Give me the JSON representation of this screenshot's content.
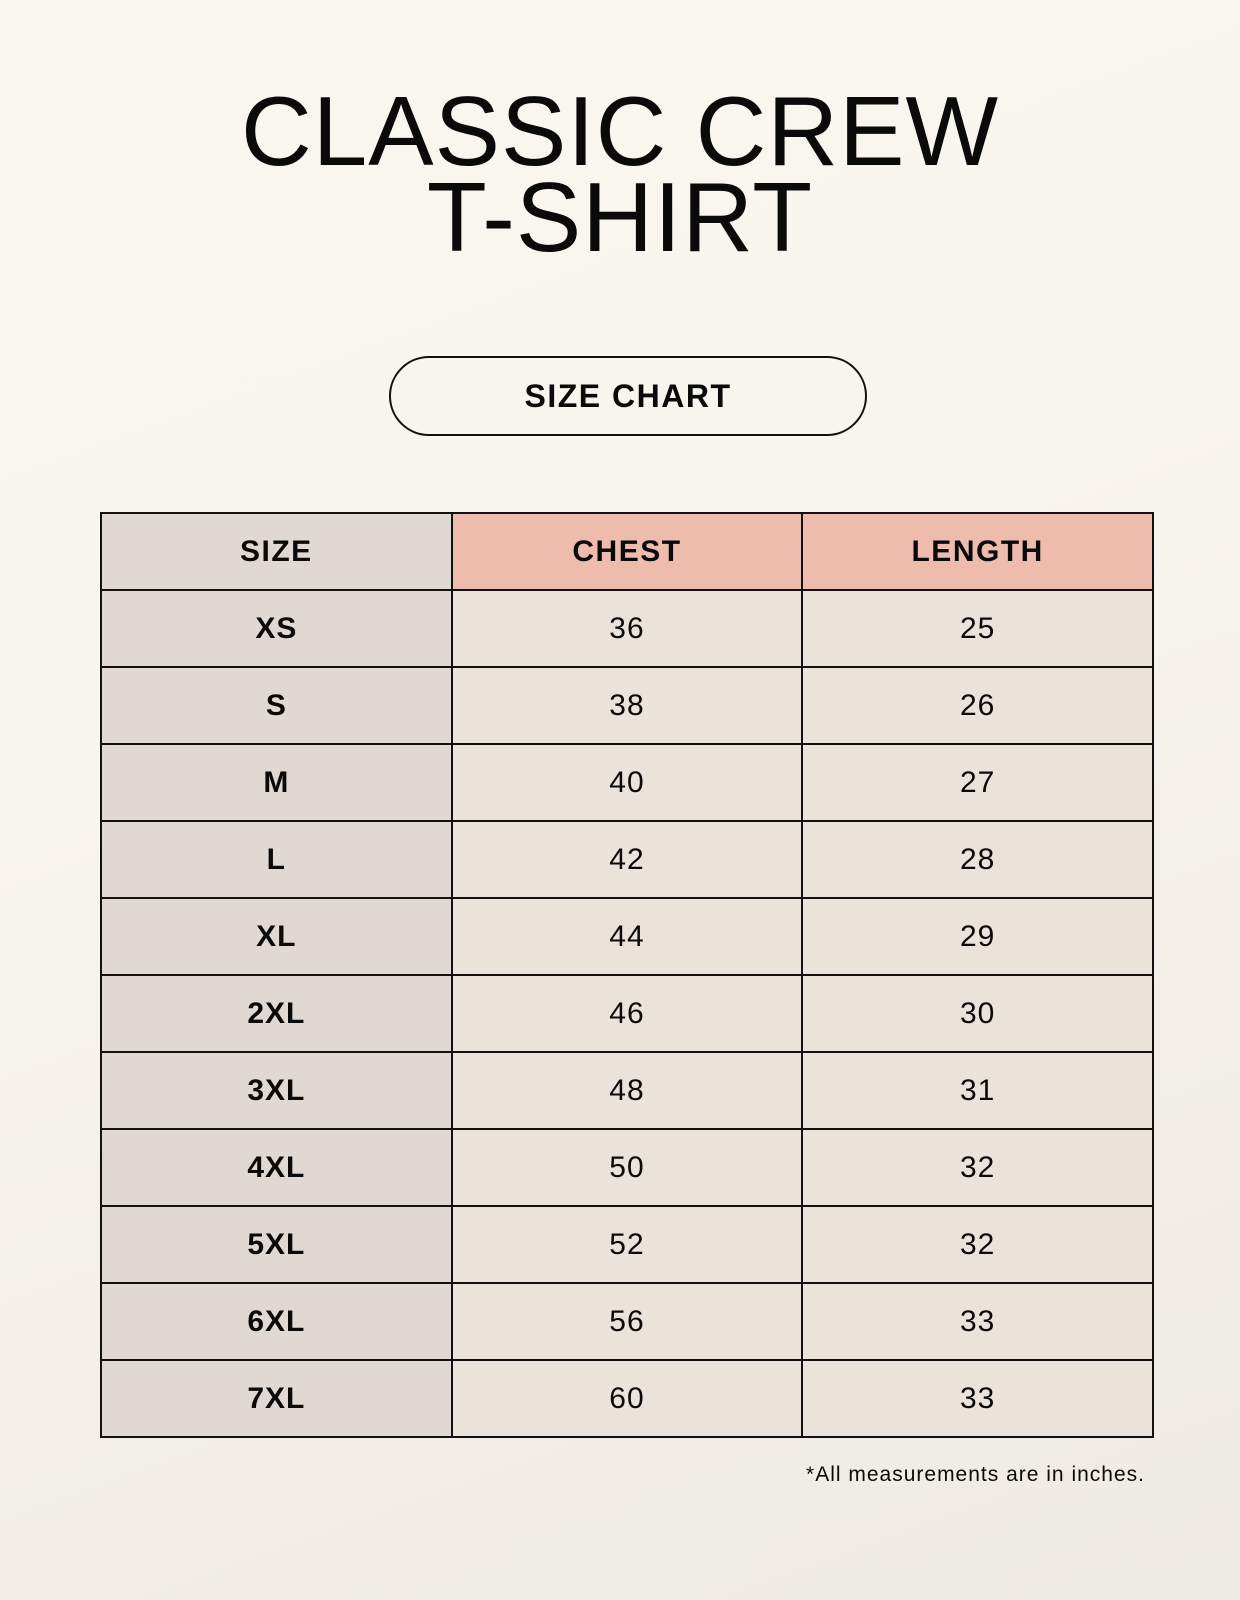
{
  "title": {
    "line1": "CLASSIC CREW",
    "line2": "T-SHIRT"
  },
  "badge": "SIZE CHART",
  "table": {
    "headers": [
      "SIZE",
      "CHEST",
      "LENGTH"
    ],
    "rows": [
      [
        "XS",
        "36",
        "25"
      ],
      [
        "S",
        "38",
        "26"
      ],
      [
        "M",
        "40",
        "27"
      ],
      [
        "L",
        "42",
        "28"
      ],
      [
        "XL",
        "44",
        "29"
      ],
      [
        "2XL",
        "46",
        "30"
      ],
      [
        "3XL",
        "48",
        "31"
      ],
      [
        "4XL",
        "50",
        "32"
      ],
      [
        "5XL",
        "52",
        "32"
      ],
      [
        "6XL",
        "56",
        "33"
      ],
      [
        "7XL",
        "60",
        "33"
      ]
    ]
  },
  "footnote": "*All measurements are in inches.",
  "colors": {
    "size_column": "#e0d9d3",
    "header_accent": "#eebcad",
    "value_cells": "#eae3d9"
  }
}
